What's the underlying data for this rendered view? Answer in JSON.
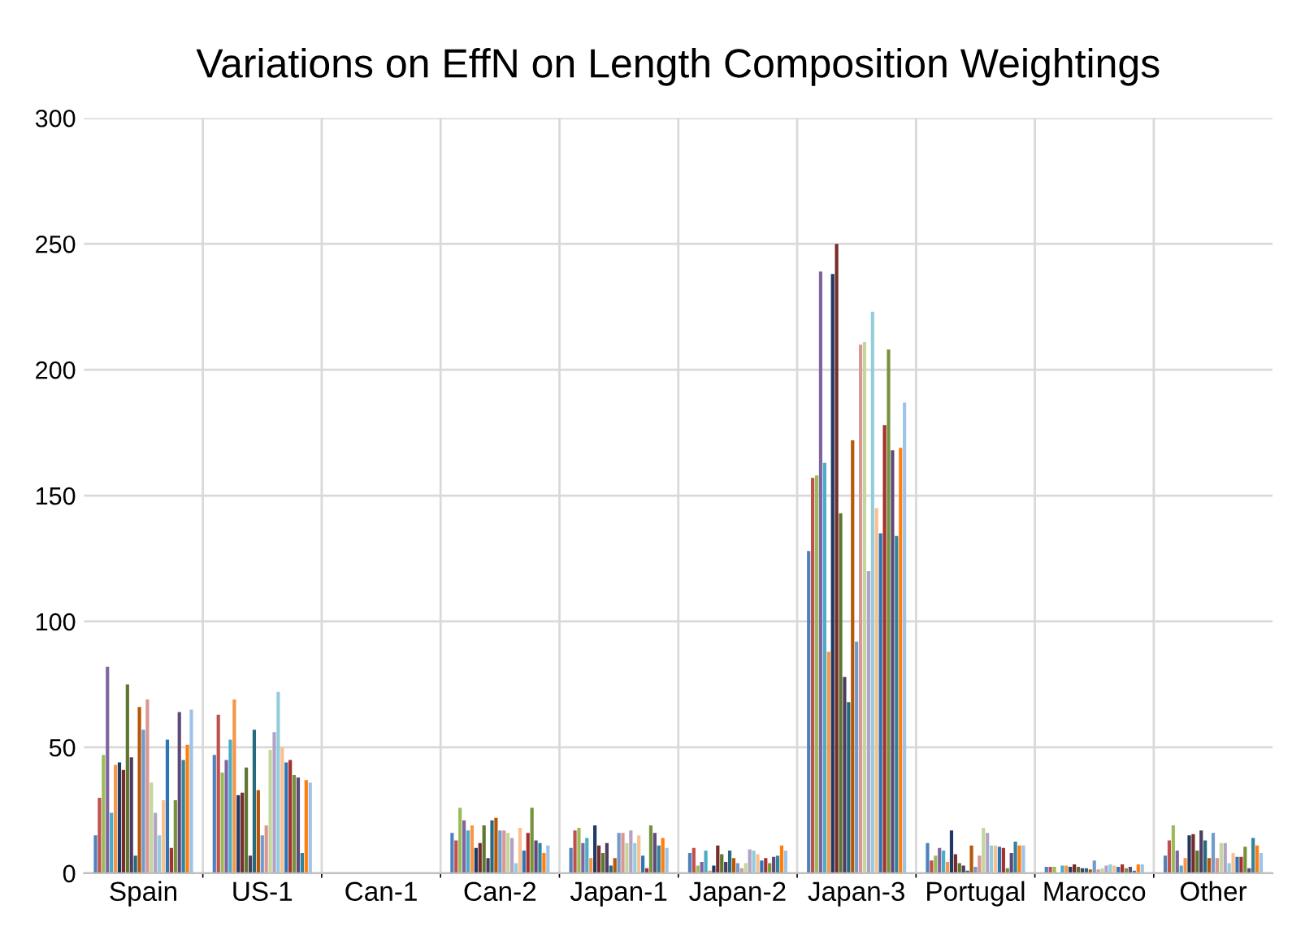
{
  "chart_data": {
    "type": "bar",
    "title": "Variations on EffN on Length Composition Weightings",
    "categories": [
      "Spain",
      "US-1",
      "Can-1",
      "Can-2",
      "Japan-1",
      "Japan-2",
      "Japan-3",
      "Portugal",
      "Marocco",
      "Other"
    ],
    "ylim": [
      0,
      300
    ],
    "yticks": [
      0,
      50,
      100,
      150,
      200,
      250,
      300
    ],
    "grid": true,
    "series": [
      {
        "color": "#4f81bd",
        "values": [
          15,
          47,
          0,
          16,
          10,
          8,
          128,
          12,
          2.5,
          7
        ]
      },
      {
        "color": "#c0504d",
        "values": [
          30,
          63,
          0,
          13,
          17,
          10,
          157,
          5,
          2.5,
          13
        ]
      },
      {
        "color": "#9bbb59",
        "values": [
          47,
          40,
          0,
          26,
          18,
          3,
          158,
          7,
          2.5,
          19
        ]
      },
      {
        "color": "#8064a2",
        "values": [
          82,
          45,
          0,
          21,
          12,
          4.5,
          239,
          10,
          0,
          9
        ]
      },
      {
        "color": "#4bacc6",
        "values": [
          24,
          53,
          0,
          17,
          14,
          9,
          163,
          9,
          3,
          3
        ]
      },
      {
        "color": "#f79646",
        "values": [
          43,
          69,
          0,
          19,
          6,
          1,
          88,
          4.5,
          3,
          6
        ]
      },
      {
        "color": "#1f3864",
        "values": [
          44,
          31,
          0,
          10,
          19,
          3,
          238,
          17,
          2.5,
          15
        ]
      },
      {
        "color": "#772c2a",
        "values": [
          41,
          32,
          0,
          12,
          11,
          11,
          250,
          7.5,
          3.5,
          15.5
        ]
      },
      {
        "color": "#5f7530",
        "values": [
          75,
          42,
          0,
          19,
          8,
          7.5,
          143,
          4,
          2.5,
          9
        ]
      },
      {
        "color": "#4d3b62",
        "values": [
          46,
          7,
          0,
          6,
          12,
          4.5,
          78,
          3,
          2,
          17
        ]
      },
      {
        "color": "#276a7c",
        "values": [
          7,
          57,
          0,
          21,
          3,
          9,
          68,
          1,
          2,
          13
        ]
      },
      {
        "color": "#b65708",
        "values": [
          66,
          33,
          0,
          22,
          6,
          6,
          172,
          11,
          1.5,
          6
        ]
      },
      {
        "color": "#729aca",
        "values": [
          57,
          15,
          0,
          17,
          16,
          4,
          92,
          2.5,
          5,
          16
        ]
      },
      {
        "color": "#d99694",
        "values": [
          69,
          19,
          0,
          17,
          16,
          2,
          210,
          7,
          1.5,
          6
        ]
      },
      {
        "color": "#c3d69b",
        "values": [
          36,
          49,
          0,
          16,
          12,
          4,
          211,
          18,
          2,
          12
        ]
      },
      {
        "color": "#b3a2c7",
        "values": [
          24,
          56,
          0,
          14,
          17,
          9.5,
          120,
          16,
          3,
          12
        ]
      },
      {
        "color": "#93cddd",
        "values": [
          15,
          72,
          0,
          4,
          12,
          9,
          223,
          11,
          3.5,
          4
        ]
      },
      {
        "color": "#fac090",
        "values": [
          29,
          50,
          0,
          18,
          15,
          7.5,
          145,
          11,
          3,
          8
        ]
      },
      {
        "color": "#2e75b6",
        "values": [
          53,
          44,
          0,
          9,
          7,
          5,
          135,
          10.5,
          2.5,
          6.5
        ]
      },
      {
        "color": "#a5302e",
        "values": [
          10,
          45,
          0,
          16,
          2,
          6,
          178,
          10,
          3.5,
          6.5
        ]
      },
      {
        "color": "#76923c",
        "values": [
          29,
          39,
          0,
          26,
          19,
          4,
          208,
          2,
          2,
          10.5
        ]
      },
      {
        "color": "#5f497a",
        "values": [
          64,
          38,
          0,
          13,
          16,
          6.5,
          168,
          8,
          2.5,
          2
        ]
      },
      {
        "color": "#31849b",
        "values": [
          45,
          8,
          0,
          12,
          11,
          7,
          134,
          12.5,
          1,
          14
        ]
      },
      {
        "color": "#ff7f0e",
        "values": [
          51,
          37,
          0,
          8,
          14,
          11,
          169,
          11,
          3.5,
          11
        ]
      },
      {
        "color": "#9dc3e6",
        "values": [
          65,
          36,
          0,
          11,
          10,
          9,
          187,
          11,
          3.5,
          8
        ]
      }
    ]
  }
}
